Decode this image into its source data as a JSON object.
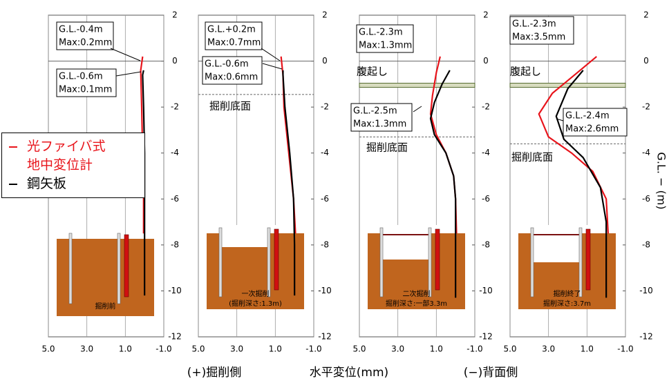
{
  "chart_data": [
    {
      "type": "line",
      "xlim": [
        5,
        -1
      ],
      "ylim": [
        -12,
        2
      ],
      "xticks": [
        {
          "value": 5,
          "label": "5.0"
        },
        {
          "value": 3,
          "label": "3.0"
        },
        {
          "value": 1,
          "label": "1.0"
        },
        {
          "value": -1,
          "label": "-1.0"
        }
      ],
      "yticks": [
        2,
        0,
        -2,
        -4,
        -6,
        -8,
        -10,
        -12
      ],
      "series": [
        {
          "name": "光ファイバ式\n地中変位計",
          "color": "#e8141b",
          "x": [
            0.1,
            0.2,
            0.15,
            0.1,
            0.05,
            0.05
          ],
          "y": [
            0.2,
            -0.4,
            -2,
            -4,
            -6,
            -7.5
          ]
        },
        {
          "name": "鋼矢板",
          "color": "#000000",
          "x": [
            0.05,
            0.1,
            0.05,
            0.0,
            0.0,
            0.0,
            0.0
          ],
          "y": [
            -0.4,
            -0.6,
            -2,
            -4,
            -6,
            -8,
            -10.2
          ]
        }
      ],
      "annotations": [
        {
          "lines": [
            "G.L.-0.4m",
            "Max:0.2mm"
          ],
          "color": "#e8141b"
        },
        {
          "lines": [
            "G.L.-0.6m",
            "Max:0.1mm"
          ],
          "color": "#000000"
        }
      ],
      "inset_caption": [
        "掘削前"
      ]
    },
    {
      "type": "line",
      "xlim": [
        5,
        -1
      ],
      "ylim": [
        -12,
        2
      ],
      "xticks": [
        {
          "value": 5,
          "label": "5.0"
        },
        {
          "value": 3,
          "label": "3.0"
        },
        {
          "value": 1,
          "label": "1.0"
        },
        {
          "value": -1,
          "label": "-1.0"
        }
      ],
      "yticks": [
        2,
        0,
        -2,
        -4,
        -6,
        -8,
        -10,
        -12
      ],
      "series": [
        {
          "color": "#e8141b",
          "x": [
            0.7,
            0.6,
            0.55,
            0.3,
            0.05,
            -0.05
          ],
          "y": [
            0.2,
            -0.6,
            -2,
            -4,
            -6,
            -7.5
          ]
        },
        {
          "color": "#000000",
          "x": [
            0.6,
            0.6,
            0.5,
            0.25,
            0.05,
            0.0,
            0.0
          ],
          "y": [
            -0.4,
            -0.6,
            -2,
            -4,
            -6,
            -8,
            -10.2
          ]
        }
      ],
      "annotations": [
        {
          "lines": [
            "G.L.+0.2m",
            "Max:0.7mm"
          ],
          "color": "#e8141b"
        },
        {
          "lines": [
            "G.L.-0.6m",
            "Max:0.6mm"
          ],
          "color": "#000000"
        }
      ],
      "bottom_line": {
        "label": "掘削底面",
        "y": -1.45
      },
      "inset_caption": [
        "一次掘削",
        "(掘削深さ:1.3m)"
      ]
    },
    {
      "type": "line",
      "xlim": [
        5,
        -1
      ],
      "ylim": [
        -12,
        2
      ],
      "xticks": [
        {
          "value": 5,
          "label": "5.0"
        },
        {
          "value": 3,
          "label": "3.0"
        },
        {
          "value": 1,
          "label": "1.0"
        },
        {
          "value": -1,
          "label": "-1.0"
        }
      ],
      "yticks": [
        2,
        0,
        -2,
        -4,
        -6,
        -8,
        -10,
        -12
      ],
      "series": [
        {
          "color": "#e8141b",
          "x": [
            0.8,
            1.0,
            1.2,
            1.3,
            1.0,
            0.5,
            0.1,
            0.0,
            -0.05
          ],
          "y": [
            0.2,
            -0.5,
            -1.5,
            -2.3,
            -3.2,
            -4,
            -5,
            -6,
            -7.5
          ]
        },
        {
          "color": "#000000",
          "x": [
            0.3,
            0.7,
            1.1,
            1.3,
            1.1,
            0.5,
            0.1,
            0.0,
            0.0,
            0.0
          ],
          "y": [
            -0.4,
            -1,
            -1.8,
            -2.5,
            -3.2,
            -4,
            -5,
            -6,
            -8,
            -10.3
          ]
        }
      ],
      "annotations": [
        {
          "lines": [
            "G.L.-2.3m",
            "Max:1.3mm"
          ],
          "color": "#e8141b"
        },
        {
          "lines": [
            "G.L.-2.5m",
            "Max:1.3mm"
          ],
          "color": "#000000"
        }
      ],
      "waler": {
        "label": "腹起し",
        "y": -1.05
      },
      "bottom_line": {
        "label": "掘削底面",
        "y": -3.3
      },
      "inset_caption": [
        "二次掘削",
        "掘削深さ:一部3.3m"
      ]
    },
    {
      "type": "line",
      "xlim": [
        5,
        -1
      ],
      "ylim": [
        -12,
        2
      ],
      "xticks": [
        {
          "value": 5,
          "label": "5.0"
        },
        {
          "value": 3,
          "label": "3.0"
        },
        {
          "value": 1,
          "label": "1.0"
        },
        {
          "value": -1,
          "label": "-1.0"
        }
      ],
      "yticks": [
        2,
        0,
        -2,
        -4,
        -6,
        -8,
        -10,
        -12
      ],
      "series": [
        {
          "color": "#e8141b",
          "x": [
            0.5,
            1.5,
            2.8,
            3.5,
            3.0,
            1.8,
            0.7,
            0.0,
            -0.1
          ],
          "y": [
            0.2,
            -0.5,
            -1.4,
            -2.3,
            -3.3,
            -4,
            -4.8,
            -6,
            -7.5
          ]
        },
        {
          "color": "#000000",
          "x": [
            1.2,
            2.0,
            2.6,
            2.2,
            1.2,
            0.3,
            0.0,
            0.0,
            0.0
          ],
          "y": [
            -0.4,
            -1.2,
            -2.4,
            -3.4,
            -4.2,
            -5.5,
            -7,
            -9,
            -10.3
          ]
        }
      ],
      "annotations": [
        {
          "lines": [
            "G.L.-2.3m",
            "Max:3.5mm"
          ],
          "color": "#e8141b"
        },
        {
          "lines": [
            "G.L.-2.4m",
            "Max:2.6mm"
          ],
          "color": "#000000"
        }
      ],
      "waler": {
        "label": "腹起し",
        "y": -1.05
      },
      "bottom_line": {
        "label": "掘削底面",
        "y": -3.6
      },
      "inset_caption": [
        "掘削終了",
        "掘削深さ:3.7m"
      ]
    }
  ],
  "xlabel_left": "(+)掘削側",
  "xlabel": "水平変位(mm)",
  "xlabel_right": "(−)背面側",
  "ylabel": "G.L. − (m)"
}
